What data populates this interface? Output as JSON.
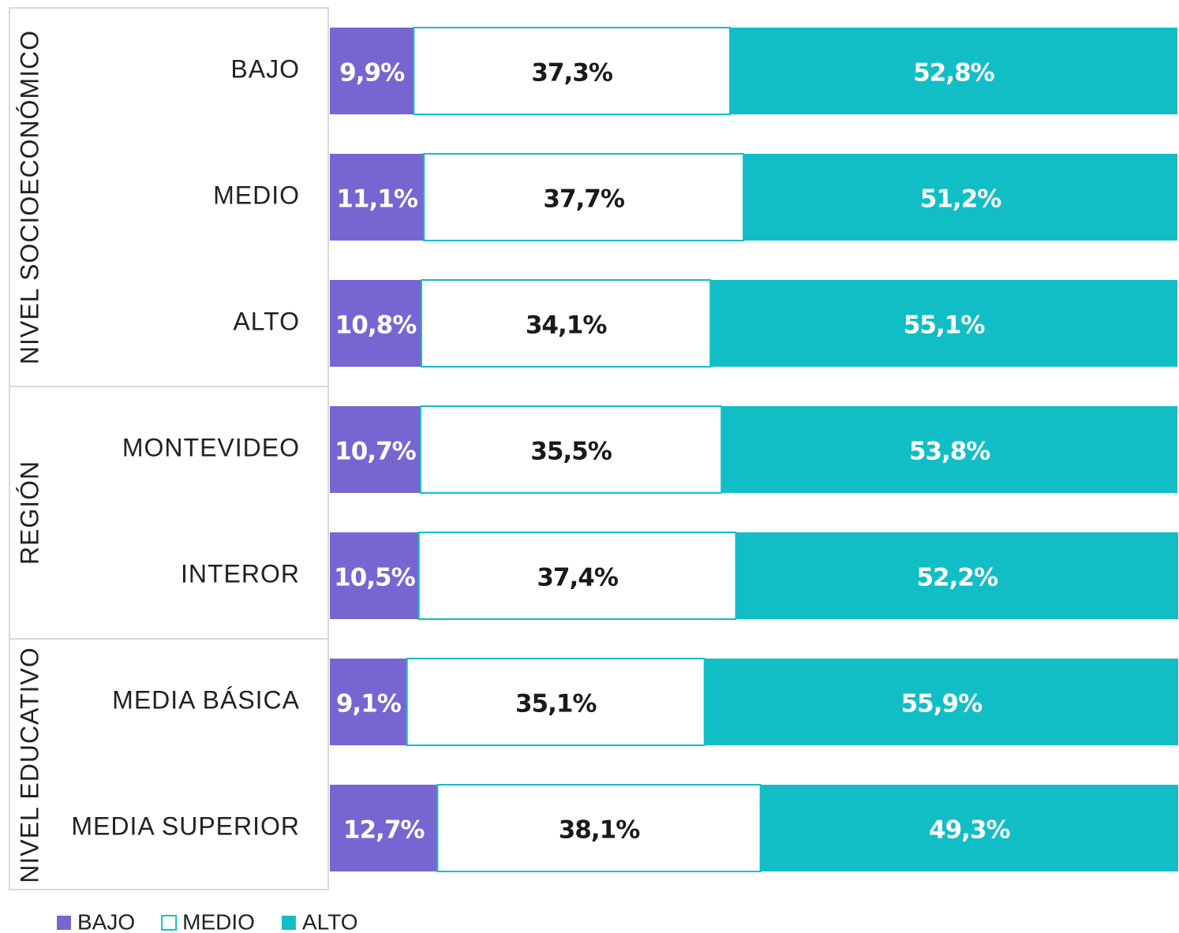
{
  "chart_data": {
    "type": "stacked-bar-horizontal",
    "groups": [
      {
        "name": "NIVEL SOCIOECONÓMICO",
        "categories": [
          "BAJO",
          "MEDIO",
          "ALTO"
        ]
      },
      {
        "name": "REGIÓN",
        "categories": [
          "MONTEVIDEO",
          "INTEROR"
        ]
      },
      {
        "name": "NIVEL EDUCATIVO",
        "categories": [
          "MEDIA BÁSICA",
          "MEDIA SUPERIOR"
        ]
      }
    ],
    "xlim": [
      0,
      100
    ],
    "series": [
      {
        "name": "BAJO",
        "color": "#7766d1",
        "label_color": "#ffffff",
        "values": [
          9.9,
          11.1,
          10.8,
          10.7,
          10.5,
          9.1,
          12.7
        ],
        "value_labels": [
          "9,9%",
          "11,1%",
          "10,8%",
          "10,7%",
          "10,5%",
          "9,1%",
          "12,7%"
        ]
      },
      {
        "name": "MEDIO",
        "color": "#ffffff",
        "label_color": "#1a1a1a",
        "values": [
          37.3,
          37.7,
          34.1,
          35.5,
          37.4,
          35.1,
          38.1
        ],
        "value_labels": [
          "37,3%",
          "37,7%",
          "34,1%",
          "35,5%",
          "37,4%",
          "35,1%",
          "38,1%"
        ]
      },
      {
        "name": "ALTO",
        "color": "#12bec6",
        "label_color": "#ffffff",
        "values": [
          52.8,
          51.2,
          55.1,
          53.8,
          52.2,
          55.9,
          49.3
        ],
        "value_labels": [
          "52,8%",
          "51,2%",
          "55,1%",
          "53,8%",
          "52,2%",
          "55,9%",
          "49,3%"
        ]
      }
    ]
  }
}
